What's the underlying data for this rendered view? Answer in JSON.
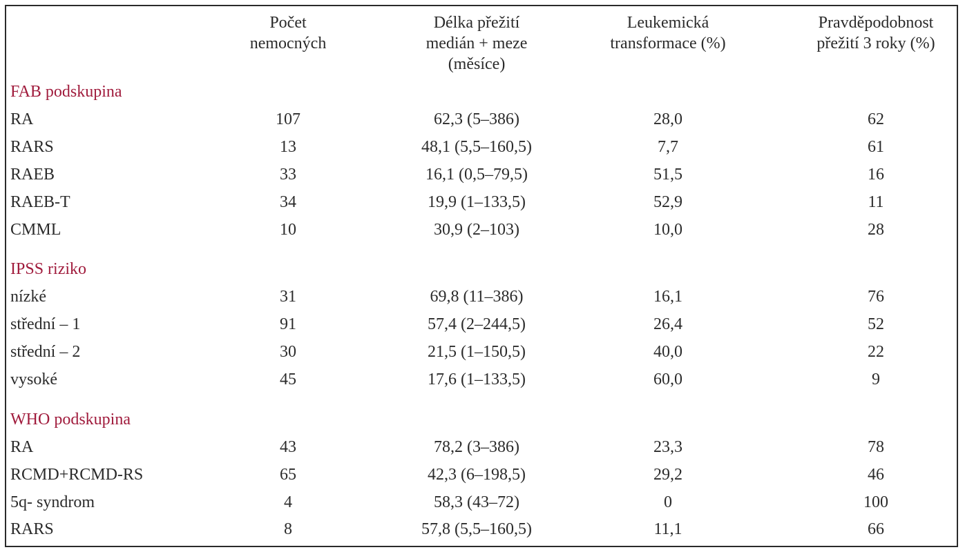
{
  "headers": [
    [
      "Počet",
      "nemocných"
    ],
    [
      "Délka přežití",
      "medián + meze",
      "(měsíce)"
    ],
    [
      "Leukemická",
      "transformace (%)"
    ],
    [
      "Pravděpodobnost",
      "přežití 3 roky (%)"
    ]
  ],
  "sections": [
    {
      "title": "FAB podskupina",
      "rows": [
        [
          "RA",
          "107",
          "62,3 (5–386)",
          "28,0",
          "62"
        ],
        [
          "RARS",
          "13",
          "48,1 (5,5–160,5)",
          "7,7",
          "61"
        ],
        [
          "RAEB",
          "33",
          "16,1 (0,5–79,5)",
          "51,5",
          "16"
        ],
        [
          "RAEB-T",
          "34",
          "19,9 (1–133,5)",
          "52,9",
          "11"
        ],
        [
          "CMML",
          "10",
          "30,9 (2–103)",
          "10,0",
          "28"
        ]
      ]
    },
    {
      "title": "IPSS riziko",
      "rows": [
        [
          "nízké",
          "31",
          "69,8 (11–386)",
          "16,1",
          "76"
        ],
        [
          "střední – 1",
          "91",
          "57,4 (2–244,5)",
          "26,4",
          "52"
        ],
        [
          "střední – 2",
          "30",
          "21,5 (1–150,5)",
          "40,0",
          "22"
        ],
        [
          "vysoké",
          "45",
          "17,6 (1–133,5)",
          "60,0",
          "9"
        ]
      ]
    },
    {
      "title": "WHO podskupina",
      "rows": [
        [
          "RA",
          "43",
          "78,2 (3–386)",
          "23,3",
          "78"
        ],
        [
          "RCMD+RCMD-RS",
          "65",
          "42,3 (6–198,5)",
          "29,2",
          "46"
        ],
        [
          "5q- syndrom",
          "4",
          "58,3 (43–72)",
          "0",
          "100"
        ],
        [
          "RARS",
          "8",
          "57,8 (5,5–160,5)",
          "11,1",
          "66"
        ]
      ]
    }
  ],
  "colors": {
    "section_title": "#a01b3c",
    "text": "#2b2b2b",
    "border": "#2a2a2a"
  }
}
